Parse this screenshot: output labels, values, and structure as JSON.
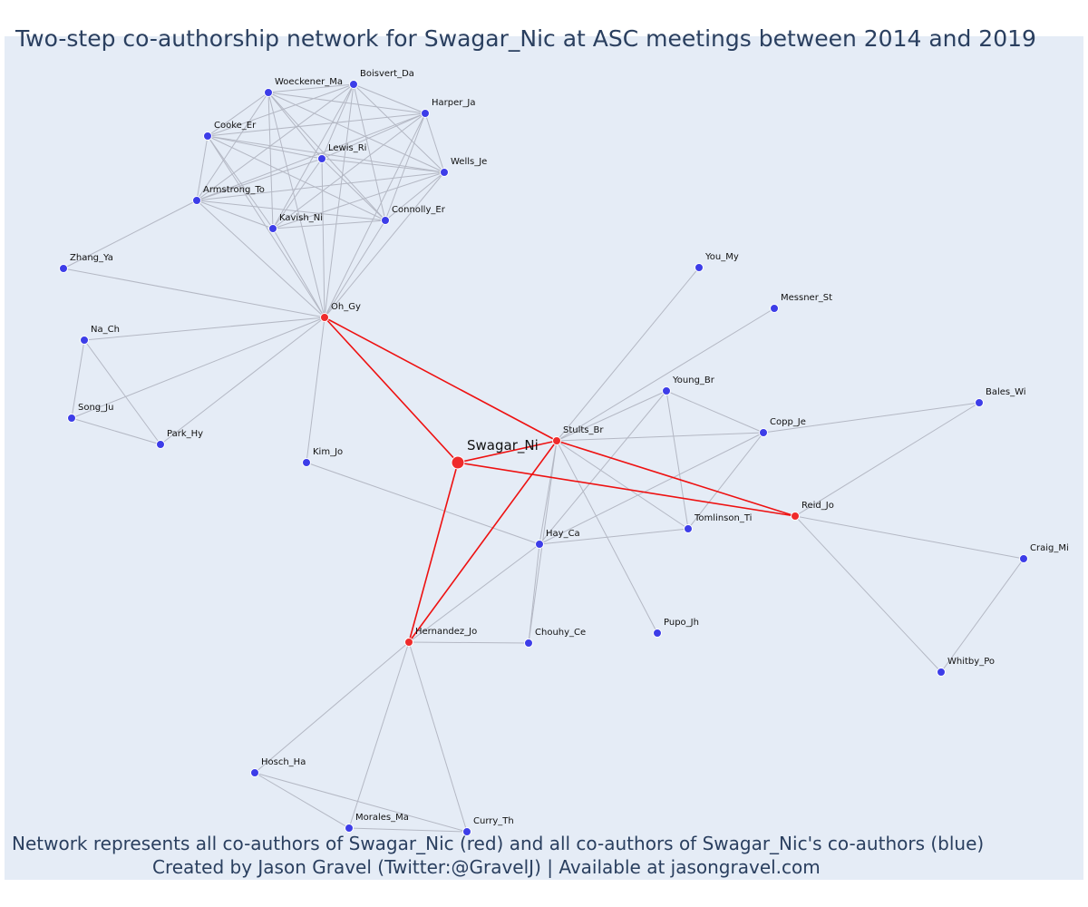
{
  "title": "Two-step co-authorship network for Swagar_Nic at ASC meetings between 2014 and 2019",
  "footer_line1": "Network represents all co-authors of Swagar_Nic (red) and all co-authors of Swagar_Nic's co-authors (blue)",
  "footer_line2": "Created by Jason Gravel (Twitter:@GravelJ) | Available at jasongravel.com",
  "colors": {
    "background": "#e5ecf6",
    "primary_node": "#ef2b2b",
    "coauthor_node": "#3d3de8",
    "primary_edge": "#ee1111",
    "secondary_edge": "#b4b8c4"
  },
  "network": {
    "nodes": [
      {
        "id": "Swagar_Ni",
        "group": "main"
      },
      {
        "id": "Oh_Gy",
        "group": "primary"
      },
      {
        "id": "Stults_Br",
        "group": "primary"
      },
      {
        "id": "Reid_Jo",
        "group": "primary"
      },
      {
        "id": "Hernandez_Jo",
        "group": "primary"
      },
      {
        "id": "Woeckener_Ma",
        "group": "secondary"
      },
      {
        "id": "Boisvert_Da",
        "group": "secondary"
      },
      {
        "id": "Harper_Ja",
        "group": "secondary"
      },
      {
        "id": "Cooke_Er",
        "group": "secondary"
      },
      {
        "id": "Lewis_Ri",
        "group": "secondary"
      },
      {
        "id": "Wells_Je",
        "group": "secondary"
      },
      {
        "id": "Armstrong_To",
        "group": "secondary"
      },
      {
        "id": "Connolly_Er",
        "group": "secondary"
      },
      {
        "id": "Kavish_Ni",
        "group": "secondary"
      },
      {
        "id": "Zhang_Ya",
        "group": "secondary"
      },
      {
        "id": "Na_Ch",
        "group": "secondary"
      },
      {
        "id": "Song_Ju",
        "group": "secondary"
      },
      {
        "id": "Park_Hy",
        "group": "secondary"
      },
      {
        "id": "Kim_Jo",
        "group": "secondary"
      },
      {
        "id": "You_My",
        "group": "secondary"
      },
      {
        "id": "Messner_St",
        "group": "secondary"
      },
      {
        "id": "Young_Br",
        "group": "secondary"
      },
      {
        "id": "Bales_Wi",
        "group": "secondary"
      },
      {
        "id": "Copp_Je",
        "group": "secondary"
      },
      {
        "id": "Hay_Ca",
        "group": "secondary"
      },
      {
        "id": "Tomlinson_Ti",
        "group": "secondary"
      },
      {
        "id": "Craig_Mi",
        "group": "secondary"
      },
      {
        "id": "Chouhy_Ce",
        "group": "secondary"
      },
      {
        "id": "Pupo_Jh",
        "group": "secondary"
      },
      {
        "id": "Whitby_Po",
        "group": "secondary"
      },
      {
        "id": "Hosch_Ha",
        "group": "secondary"
      },
      {
        "id": "Morales_Ma",
        "group": "secondary"
      },
      {
        "id": "Curry_Th",
        "group": "secondary"
      }
    ],
    "edges": [
      [
        "Swagar_Ni",
        "Oh_Gy"
      ],
      [
        "Swagar_Ni",
        "Stults_Br"
      ],
      [
        "Swagar_Ni",
        "Reid_Jo"
      ],
      [
        "Swagar_Ni",
        "Hernandez_Jo"
      ],
      [
        "Stults_Br",
        "Oh_Gy"
      ],
      [
        "Stults_Br",
        "Reid_Jo"
      ],
      [
        "Stults_Br",
        "Hernandez_Jo"
      ],
      [
        "Woeckener_Ma",
        "Boisvert_Da"
      ],
      [
        "Woeckener_Ma",
        "Harper_Ja"
      ],
      [
        "Woeckener_Ma",
        "Cooke_Er"
      ],
      [
        "Woeckener_Ma",
        "Lewis_Ri"
      ],
      [
        "Woeckener_Ma",
        "Wells_Je"
      ],
      [
        "Woeckener_Ma",
        "Armstrong_To"
      ],
      [
        "Woeckener_Ma",
        "Connolly_Er"
      ],
      [
        "Woeckener_Ma",
        "Kavish_Ni"
      ],
      [
        "Woeckener_Ma",
        "Oh_Gy"
      ],
      [
        "Boisvert_Da",
        "Harper_Ja"
      ],
      [
        "Boisvert_Da",
        "Cooke_Er"
      ],
      [
        "Boisvert_Da",
        "Lewis_Ri"
      ],
      [
        "Boisvert_Da",
        "Wells_Je"
      ],
      [
        "Boisvert_Da",
        "Armstrong_To"
      ],
      [
        "Boisvert_Da",
        "Connolly_Er"
      ],
      [
        "Boisvert_Da",
        "Kavish_Ni"
      ],
      [
        "Boisvert_Da",
        "Oh_Gy"
      ],
      [
        "Harper_Ja",
        "Cooke_Er"
      ],
      [
        "Harper_Ja",
        "Lewis_Ri"
      ],
      [
        "Harper_Ja",
        "Wells_Je"
      ],
      [
        "Harper_Ja",
        "Armstrong_To"
      ],
      [
        "Harper_Ja",
        "Connolly_Er"
      ],
      [
        "Harper_Ja",
        "Kavish_Ni"
      ],
      [
        "Harper_Ja",
        "Oh_Gy"
      ],
      [
        "Cooke_Er",
        "Lewis_Ri"
      ],
      [
        "Cooke_Er",
        "Wells_Je"
      ],
      [
        "Cooke_Er",
        "Armstrong_To"
      ],
      [
        "Cooke_Er",
        "Connolly_Er"
      ],
      [
        "Cooke_Er",
        "Kavish_Ni"
      ],
      [
        "Cooke_Er",
        "Oh_Gy"
      ],
      [
        "Lewis_Ri",
        "Wells_Je"
      ],
      [
        "Lewis_Ri",
        "Armstrong_To"
      ],
      [
        "Lewis_Ri",
        "Connolly_Er"
      ],
      [
        "Lewis_Ri",
        "Kavish_Ni"
      ],
      [
        "Lewis_Ri",
        "Oh_Gy"
      ],
      [
        "Wells_Je",
        "Armstrong_To"
      ],
      [
        "Wells_Je",
        "Connolly_Er"
      ],
      [
        "Wells_Je",
        "Kavish_Ni"
      ],
      [
        "Wells_Je",
        "Oh_Gy"
      ],
      [
        "Armstrong_To",
        "Connolly_Er"
      ],
      [
        "Armstrong_To",
        "Kavish_Ni"
      ],
      [
        "Armstrong_To",
        "Oh_Gy"
      ],
      [
        "Armstrong_To",
        "Zhang_Ya"
      ],
      [
        "Connolly_Er",
        "Kavish_Ni"
      ],
      [
        "Connolly_Er",
        "Oh_Gy"
      ],
      [
        "Kavish_Ni",
        "Oh_Gy"
      ],
      [
        "Oh_Gy",
        "Zhang_Ya"
      ],
      [
        "Oh_Gy",
        "Na_Ch"
      ],
      [
        "Oh_Gy",
        "Song_Ju"
      ],
      [
        "Oh_Gy",
        "Park_Hy"
      ],
      [
        "Oh_Gy",
        "Kim_Jo"
      ],
      [
        "Na_Ch",
        "Song_Ju"
      ],
      [
        "Na_Ch",
        "Park_Hy"
      ],
      [
        "Song_Ju",
        "Park_Hy"
      ],
      [
        "Kim_Jo",
        "Hay_Ca"
      ],
      [
        "Stults_Br",
        "You_My"
      ],
      [
        "Stults_Br",
        "Messner_St"
      ],
      [
        "Stults_Br",
        "Young_Br"
      ],
      [
        "Stults_Br",
        "Copp_Je"
      ],
      [
        "Stults_Br",
        "Hay_Ca"
      ],
      [
        "Stults_Br",
        "Tomlinson_Ti"
      ],
      [
        "Stults_Br",
        "Chouhy_Ce"
      ],
      [
        "Stults_Br",
        "Pupo_Jh"
      ],
      [
        "Young_Br",
        "Copp_Je"
      ],
      [
        "Young_Br",
        "Hay_Ca"
      ],
      [
        "Young_Br",
        "Tomlinson_Ti"
      ],
      [
        "Copp_Je",
        "Bales_Wi"
      ],
      [
        "Copp_Je",
        "Hay_Ca"
      ],
      [
        "Copp_Je",
        "Tomlinson_Ti"
      ],
      [
        "Hay_Ca",
        "Tomlinson_Ti"
      ],
      [
        "Hay_Ca",
        "Chouhy_Ce"
      ],
      [
        "Hay_Ca",
        "Hernandez_Jo"
      ],
      [
        "Reid_Jo",
        "Bales_Wi"
      ],
      [
        "Reid_Jo",
        "Craig_Mi"
      ],
      [
        "Reid_Jo",
        "Whitby_Po"
      ],
      [
        "Craig_Mi",
        "Whitby_Po"
      ],
      [
        "Hernandez_Jo",
        "Chouhy_Ce"
      ],
      [
        "Hernandez_Jo",
        "Hosch_Ha"
      ],
      [
        "Hernandez_Jo",
        "Morales_Ma"
      ],
      [
        "Hernandez_Jo",
        "Curry_Th"
      ],
      [
        "Hosch_Ha",
        "Morales_Ma"
      ],
      [
        "Hosch_Ha",
        "Curry_Th"
      ],
      [
        "Morales_Ma",
        "Curry_Th"
      ]
    ]
  }
}
